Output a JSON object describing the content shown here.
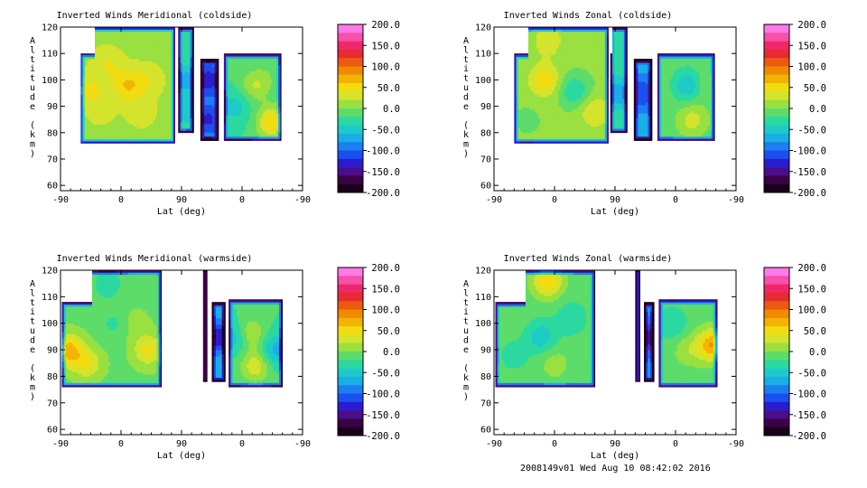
{
  "footer": {
    "text": "2008149v01 Wed Aug 10 08:42:02 2016"
  },
  "colorbar": {
    "ticks": [
      "200.0",
      "150.0",
      "100.0",
      "50.0",
      "0.0",
      "-50.0",
      "-100.0",
      "-150.0",
      "-200.0"
    ],
    "colors": [
      "#1a001a",
      "#3c0046",
      "#4a0d8c",
      "#2a1cd0",
      "#1a50f0",
      "#1c7ef0",
      "#1aaee6",
      "#1ccbc8",
      "#2bd9a0",
      "#5ddc6a",
      "#99e040",
      "#d4e32c",
      "#f2dc10",
      "#f2b400",
      "#f08a00",
      "#ec5a10",
      "#e82a32",
      "#f0286a",
      "#f550aa",
      "#ff7ae6"
    ]
  },
  "chart_data": [
    {
      "type": "heatmap",
      "title": "Inverted Winds Meridional (coldside)",
      "xlabel": "Lat (deg)",
      "ylabel": "Altitude (km)",
      "x_ticks": [
        "-90",
        "0",
        "90",
        "0",
        "-90"
      ],
      "y_ticks": [
        "60",
        "70",
        "80",
        "90",
        "100",
        "110",
        "120"
      ],
      "ylim": [
        58,
        120
      ],
      "zlim": [
        -200,
        200
      ],
      "segments": [
        {
          "x0": -60,
          "x1": 80,
          "y0": 76,
          "y1": 110,
          "ytop0": -40,
          "ytop1": 90,
          "ytop": 120,
          "base": 15,
          "blobs": [
            [
              -20,
              106,
              25
            ],
            [
              10,
              98,
              45
            ],
            [
              -45,
              96,
              30
            ],
            [
              40,
              100,
              20
            ],
            [
              -30,
              88,
              10
            ],
            [
              30,
              88,
              15
            ]
          ]
        },
        {
          "x0": 85,
          "x1": 108,
          "y0": 80,
          "y1": 110,
          "ytop0": 85,
          "ytop1": 108,
          "ytop": 120,
          "base": -20,
          "blobs": [
            [
              97,
              100,
              -50
            ],
            [
              100,
              88,
              -30
            ]
          ]
        },
        {
          "x0": 118,
          "x1": 145,
          "y0": 77,
          "y1": 108,
          "base": -75,
          "blobs": [
            [
              130,
              100,
              -60
            ],
            [
              130,
              85,
              -50
            ]
          ]
        },
        {
          "x0": 153,
          "x1": 238,
          "y0": 77,
          "y1": 110,
          "base": -20,
          "blobs": [
            [
              200,
              98,
              40
            ],
            [
              225,
              84,
              80
            ],
            [
              170,
              90,
              -30
            ],
            [
              220,
              102,
              10
            ]
          ]
        }
      ]
    },
    {
      "type": "heatmap",
      "title": "Inverted Winds Zonal (coldside)",
      "xlabel": "Lat (deg)",
      "ylabel": "Altitude (km)",
      "x_ticks": [
        "-90",
        "0",
        "90",
        "0",
        "-90"
      ],
      "y_ticks": [
        "60",
        "70",
        "80",
        "90",
        "100",
        "110",
        "120"
      ],
      "ylim": [
        58,
        120
      ],
      "zlim": [
        -200,
        200
      ],
      "segments": [
        {
          "x0": -60,
          "x1": 80,
          "y0": 76,
          "y1": 110,
          "ytop0": -40,
          "ytop1": 90,
          "ytop": 120,
          "base": 5,
          "blobs": [
            [
              -15,
              100,
              50
            ],
            [
              30,
              96,
              -45
            ],
            [
              60,
              88,
              35
            ],
            [
              -10,
              115,
              30
            ],
            [
              -40,
              85,
              -10
            ]
          ]
        },
        {
          "x0": 83,
          "x1": 108,
          "y0": 80,
          "y1": 110,
          "ytop0": 85,
          "ytop1": 108,
          "ytop": 120,
          "base": -25,
          "blobs": [
            [
              96,
              95,
              -50
            ]
          ]
        },
        {
          "x0": 118,
          "x1": 145,
          "y0": 77,
          "y1": 108,
          "base": -70,
          "blobs": [
            [
              130,
              95,
              -50
            ]
          ]
        },
        {
          "x0": 153,
          "x1": 238,
          "y0": 77,
          "y1": 110,
          "base": -10,
          "blobs": [
            [
              200,
              98,
              -55
            ],
            [
              205,
              85,
              40
            ],
            [
              220,
              98,
              20
            ]
          ]
        }
      ]
    },
    {
      "type": "heatmap",
      "title": "Inverted Winds Meridional (warmside)",
      "xlabel": "Lat (deg)",
      "ylabel": "Altitude (km)",
      "x_ticks": [
        "-90",
        "0",
        "90",
        "0",
        "-90"
      ],
      "y_ticks": [
        "60",
        "70",
        "80",
        "90",
        "100",
        "110",
        "120"
      ],
      "ylim": [
        58,
        120
      ],
      "zlim": [
        -200,
        200
      ],
      "segments": [
        {
          "x0": -88,
          "x1": 60,
          "y0": 76,
          "y1": 108,
          "ytop0": -45,
          "ytop1": 60,
          "ytop": 120,
          "base": -5,
          "blobs": [
            [
              -78,
              90,
              75
            ],
            [
              -50,
              85,
              45
            ],
            [
              40,
              90,
              50
            ],
            [
              -20,
              115,
              -30
            ],
            [
              -10,
              100,
              -20
            ],
            [
              20,
              100,
              15
            ]
          ]
        },
        {
          "x0": 122,
          "x1": 128,
          "y0": 78,
          "y1": 120,
          "base": -40,
          "blobs": []
        },
        {
          "x0": 135,
          "x1": 155,
          "y0": 78,
          "y1": 108,
          "base": -60,
          "blobs": [
            [
              145,
              95,
              -80
            ]
          ]
        },
        {
          "x0": 160,
          "x1": 240,
          "y0": 76,
          "y1": 109,
          "base": -20,
          "blobs": [
            [
              190,
              96,
              60
            ],
            [
              200,
              84,
              55
            ],
            [
              230,
              90,
              -50
            ],
            [
              175,
              95,
              -50
            ]
          ]
        }
      ]
    },
    {
      "type": "heatmap",
      "title": "Inverted Winds Zonal (warmside)",
      "xlabel": "Lat (deg)",
      "ylabel": "Altitude (km)",
      "x_ticks": [
        "-90",
        "0",
        "90",
        "0",
        "-90"
      ],
      "y_ticks": [
        "60",
        "70",
        "80",
        "90",
        "100",
        "110",
        "120"
      ],
      "ylim": [
        58,
        120
      ],
      "zlim": [
        -200,
        200
      ],
      "segments": [
        {
          "x0": -88,
          "x1": 60,
          "y0": 76,
          "y1": 108,
          "ytop0": -45,
          "ytop1": 60,
          "ytop": 120,
          "base": -10,
          "blobs": [
            [
              -10,
              116,
              70
            ],
            [
              -20,
              95,
              -45
            ],
            [
              25,
              102,
              -30
            ],
            [
              0,
              85,
              20
            ],
            [
              -60,
              88,
              -20
            ]
          ]
        },
        {
          "x0": 120,
          "x1": 127,
          "y0": 78,
          "y1": 120,
          "base": -30,
          "blobs": []
        },
        {
          "x0": 133,
          "x1": 148,
          "y0": 78,
          "y1": 108,
          "base": -70,
          "blobs": [
            [
              140,
              95,
              -60
            ]
          ]
        },
        {
          "x0": 155,
          "x1": 242,
          "y0": 76,
          "y1": 109,
          "base": -10,
          "blobs": [
            [
              235,
              92,
              90
            ],
            [
              200,
              90,
              25
            ],
            [
              175,
              100,
              -30
            ]
          ]
        }
      ]
    }
  ]
}
